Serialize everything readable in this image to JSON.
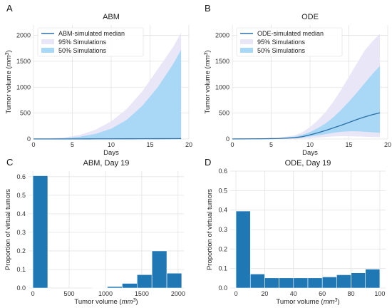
{
  "colors": {
    "median": "#2a6fa8",
    "band95": "#e8e6f7",
    "band50": "#a8d8f5",
    "bar": "#1f77b4",
    "grid": "#e3e3e3",
    "axis": "#cccccc"
  },
  "panel_letters": [
    "A",
    "B",
    "C",
    "D"
  ],
  "chart_data": [
    {
      "panel": "A",
      "type": "area",
      "title": "ABM",
      "xlabel": "Days",
      "ylabel": "Tumor volume (mm³)",
      "xlim": [
        0,
        20
      ],
      "ylim": [
        0,
        2200
      ],
      "xticks": [
        0,
        5,
        10,
        15,
        20
      ],
      "yticks": [
        0,
        500,
        1000,
        1500,
        2000
      ],
      "grid": true,
      "legend_placement": "top-left",
      "x": [
        0,
        2,
        4,
        6,
        8,
        10,
        12,
        14,
        16,
        18,
        19
      ],
      "series": [
        {
          "name": "ABM-simulated median",
          "kind": "line",
          "values": [
            2,
            2,
            2,
            2,
            3,
            3,
            4,
            5,
            6,
            7,
            8
          ]
        },
        {
          "name": "95% Simulations",
          "kind": "band",
          "lower": [
            0,
            0,
            0,
            0,
            0,
            0,
            0,
            0,
            0,
            0,
            0
          ],
          "upper": [
            2,
            10,
            30,
            80,
            180,
            340,
            580,
            920,
            1350,
            1780,
            2050
          ]
        },
        {
          "name": "50% Simulations",
          "kind": "band",
          "lower": [
            0,
            0,
            0,
            0,
            0,
            0,
            0,
            0,
            0,
            0,
            0
          ],
          "upper": [
            2,
            6,
            15,
            45,
            100,
            200,
            370,
            640,
            1000,
            1450,
            1720
          ]
        }
      ]
    },
    {
      "panel": "B",
      "type": "area",
      "title": "ODE",
      "xlabel": "Days",
      "ylabel": "Tumor volume (mm³)",
      "xlim": [
        0,
        20
      ],
      "ylim": [
        0,
        2200
      ],
      "xticks": [
        0,
        5,
        10,
        15,
        20
      ],
      "yticks": [
        0,
        500,
        1000,
        1500,
        2000
      ],
      "grid": true,
      "legend_placement": "top-left",
      "x": [
        0,
        2,
        4,
        6,
        8,
        9,
        10,
        11,
        12,
        13,
        14,
        15,
        16,
        17,
        18,
        19
      ],
      "series": [
        {
          "name": "ODE-simulated median",
          "kind": "line",
          "values": [
            2,
            3,
            5,
            10,
            25,
            45,
            80,
            120,
            165,
            215,
            265,
            320,
            375,
            425,
            470,
            505
          ]
        },
        {
          "name": "95% Simulations",
          "kind": "band",
          "lower": [
            0,
            0,
            0,
            0,
            5,
            10,
            20,
            30,
            40,
            50,
            55,
            55,
            50,
            45,
            40,
            35
          ],
          "upper": [
            3,
            5,
            10,
            25,
            70,
            130,
            230,
            360,
            520,
            720,
            950,
            1200,
            1450,
            1700,
            1880,
            2030
          ]
        },
        {
          "name": "50% Simulations",
          "kind": "band",
          "lower": [
            1,
            2,
            3,
            7,
            18,
            30,
            50,
            70,
            95,
            120,
            140,
            150,
            150,
            140,
            130,
            120
          ],
          "upper": [
            3,
            4,
            8,
            17,
            45,
            80,
            135,
            210,
            300,
            420,
            560,
            720,
            890,
            1070,
            1250,
            1410
          ]
        }
      ]
    },
    {
      "panel": "C",
      "type": "bar",
      "title": "ABM, Day 19",
      "xlabel": "Tumor volume (mm³)",
      "ylabel": "Proportion of virtual tumors",
      "xlim": [
        -60,
        2080
      ],
      "ylim": [
        0,
        0.63
      ],
      "xticks": [
        0,
        500,
        1000,
        1500,
        2000
      ],
      "yticks": [
        0,
        0.1,
        0.2,
        0.3,
        0.4,
        0.5,
        0.6
      ],
      "ytick_labels": [
        "0.0",
        "0.1",
        "0.2",
        "0.3",
        "0.4",
        "0.5",
        "0.6"
      ],
      "grid": true,
      "bin_edges": [
        0,
        205,
        410,
        615,
        820,
        1025,
        1230,
        1435,
        1640,
        1845,
        2050
      ],
      "values": [
        0.605,
        0,
        0,
        0,
        0.002,
        0.008,
        0.025,
        0.072,
        0.2,
        0.08
      ]
    },
    {
      "panel": "D",
      "type": "bar",
      "title": "ODE, Day 19",
      "xlabel": "Tumor volume (mm³)",
      "ylabel": "Proportion of virtual tumors",
      "xlim": [
        -4,
        104
      ],
      "ylim": [
        0,
        0.6
      ],
      "xticks": [
        0,
        20,
        40,
        60,
        80,
        100
      ],
      "yticks": [
        0,
        0.1,
        0.2,
        0.3,
        0.4,
        0.5,
        0.6
      ],
      "ytick_labels": [
        "0.0",
        "0.1",
        "0.2",
        "0.3",
        "0.4",
        "0.5",
        "0.6"
      ],
      "grid": true,
      "bin_edges": [
        0,
        10,
        20,
        30,
        40,
        50,
        60,
        70,
        80,
        90,
        100
      ],
      "values": [
        0.395,
        0.072,
        0.052,
        0.052,
        0.052,
        0.052,
        0.057,
        0.068,
        0.078,
        0.097
      ]
    }
  ]
}
